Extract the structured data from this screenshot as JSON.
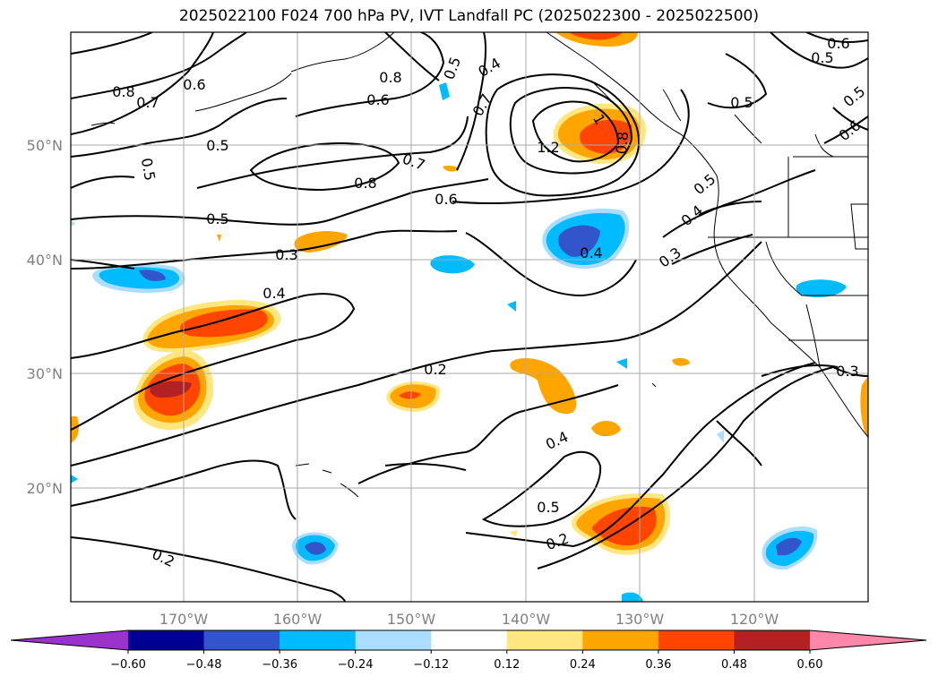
{
  "title": "2025022100 F024 700 hPa PV, IVT Landfall PC (2025022300 - 2025022500)",
  "lat_labels": [
    "50°N",
    "40°N",
    "30°N",
    "20°N"
  ],
  "lon_labels": [
    "170°W",
    "160°W",
    "150°W",
    "140°W",
    "130°W",
    "120°W"
  ],
  "contour_labels": [
    "0.8",
    "0.7",
    "0.6",
    "0.5",
    "0.5",
    "0.5",
    "0.3",
    "0.4",
    "0.2",
    "0.2",
    "0.8",
    "0.6",
    "0.5",
    "0.4",
    "0.7",
    "0.8",
    "0.7",
    "0.6",
    "1",
    "1.2",
    "0.8",
    "0.4",
    "0.5",
    "0.4",
    "0.3",
    "0.4",
    "0.5",
    "0.2",
    "0.6",
    "0.5",
    "0.5",
    "0.5",
    "0.6",
    "0.3"
  ],
  "colorbar": {
    "ticks": [
      "−0.60",
      "−0.48",
      "−0.36",
      "−0.24",
      "−0.12",
      "0.12",
      "0.24",
      "0.36",
      "0.48",
      "0.60"
    ],
    "colors": [
      "#9933cc",
      "#000090",
      "#3355cc",
      "#00bbff",
      "#aaddff",
      "#ffffff",
      "#ffe680",
      "#ffa500",
      "#ff4500",
      "#b22222",
      "#ff88aa"
    ]
  }
}
